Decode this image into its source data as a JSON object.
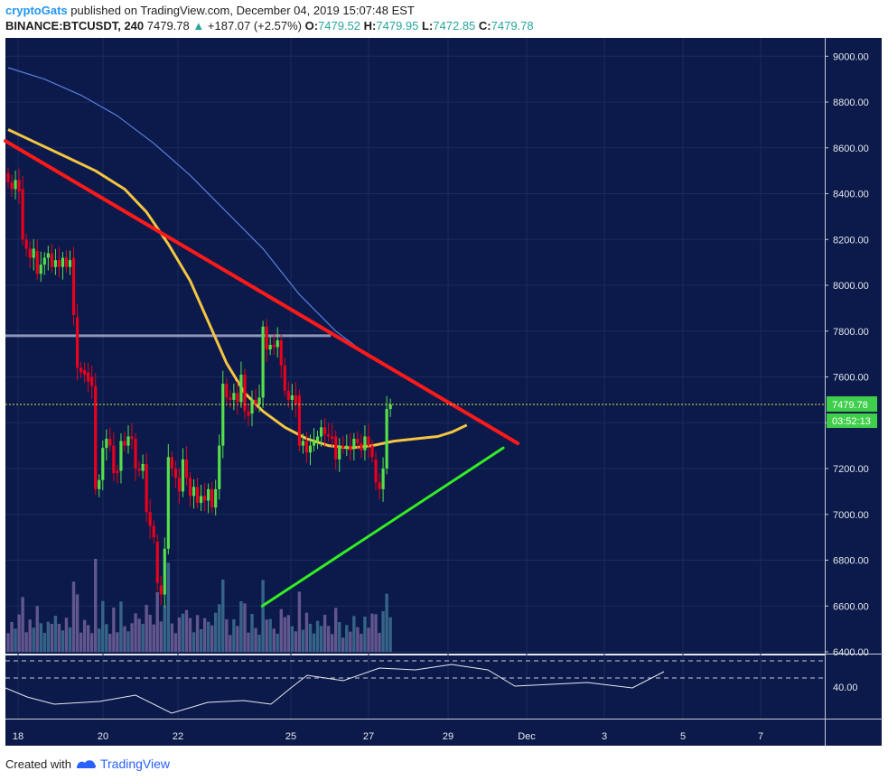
{
  "header": {
    "author": "cryptoGats",
    "published": "published on TradingView.com, December 04, 2019 15:07:48 EST",
    "symbol": "BINANCE:BTCUSDT, 240",
    "last": "7479.78",
    "change": "+187.07 (+2.57%)",
    "o_label": "O:",
    "o_val": "7479.52",
    "h_label": "H:",
    "h_val": "7479.95",
    "l_label": "L:",
    "l_val": "7472.85",
    "c_label": "C:",
    "c_val": "7479.78"
  },
  "footer": {
    "created": "Created with",
    "brand": "TradingView"
  },
  "colors": {
    "background": "#0b1a4a",
    "up": "#55e04a",
    "down": "#e8001c",
    "resistance": "#ff1a1a",
    "support": "#33ee22",
    "ma_fast": "#f5c542",
    "ma_slow": "#5b7fe0"
  },
  "chart_data": {
    "type": "candlestick",
    "price_axis": {
      "ticks": [
        "9000.00",
        "8800.00",
        "8600.00",
        "8400.00",
        "8200.00",
        "8000.00",
        "7800.00",
        "7600.00",
        "7400.00",
        "7200.00",
        "7000.00",
        "6800.00",
        "6600.00",
        "6400.00"
      ],
      "ylim": [
        6400,
        9080
      ]
    },
    "oscillator_axis": {
      "ticks": [
        "40.00"
      ]
    },
    "time_axis": {
      "ticks": [
        "18",
        "20",
        "22",
        "25",
        "27",
        "29",
        "Dec",
        "3",
        "5",
        "7"
      ]
    },
    "last_price_label": "7479.78",
    "countdown_label": "03:52:13",
    "candles": [
      {
        "o": 8490,
        "c": 8450
      },
      {
        "o": 8450,
        "c": 8420
      },
      {
        "o": 8420,
        "c": 8460
      },
      {
        "o": 8460,
        "c": 8410
      },
      {
        "o": 8420,
        "c": 8200
      },
      {
        "o": 8200,
        "c": 8160
      },
      {
        "o": 8160,
        "c": 8120
      },
      {
        "o": 8120,
        "c": 8160
      },
      {
        "o": 8150,
        "c": 8050
      },
      {
        "o": 8050,
        "c": 8090
      },
      {
        "o": 8090,
        "c": 8120
      },
      {
        "o": 8120,
        "c": 8140
      },
      {
        "o": 8140,
        "c": 8080
      },
      {
        "o": 8080,
        "c": 8110
      },
      {
        "o": 8110,
        "c": 8080
      },
      {
        "o": 8080,
        "c": 8120
      },
      {
        "o": 8120,
        "c": 8080
      },
      {
        "o": 8080,
        "c": 8110
      },
      {
        "o": 8120,
        "c": 7870
      },
      {
        "o": 7860,
        "c": 7640
      },
      {
        "o": 7640,
        "c": 7620
      },
      {
        "o": 7630,
        "c": 7610
      },
      {
        "o": 7620,
        "c": 7580
      },
      {
        "o": 7600,
        "c": 7560
      },
      {
        "o": 7560,
        "c": 7110
      },
      {
        "o": 7110,
        "c": 7150
      },
      {
        "o": 7150,
        "c": 7290
      },
      {
        "o": 7290,
        "c": 7330
      },
      {
        "o": 7330,
        "c": 7300
      },
      {
        "o": 7300,
        "c": 7180
      },
      {
        "o": 7190,
        "c": 7180
      },
      {
        "o": 7190,
        "c": 7320
      },
      {
        "o": 7320,
        "c": 7300
      },
      {
        "o": 7300,
        "c": 7340
      },
      {
        "o": 7340,
        "c": 7330
      },
      {
        "o": 7330,
        "c": 7200
      },
      {
        "o": 7200,
        "c": 7190
      },
      {
        "o": 7190,
        "c": 7220
      },
      {
        "o": 7220,
        "c": 7010
      },
      {
        "o": 7010,
        "c": 6950
      },
      {
        "o": 6950,
        "c": 6900
      },
      {
        "o": 6880,
        "c": 6700
      },
      {
        "o": 6690,
        "c": 6650
      },
      {
        "o": 6650,
        "c": 6850
      },
      {
        "o": 6850,
        "c": 7250
      },
      {
        "o": 7250,
        "c": 7200
      },
      {
        "o": 7200,
        "c": 7160
      },
      {
        "o": 7160,
        "c": 7100
      },
      {
        "o": 7100,
        "c": 7240
      },
      {
        "o": 7240,
        "c": 7160
      },
      {
        "o": 7160,
        "c": 7080
      },
      {
        "o": 7080,
        "c": 7120
      },
      {
        "o": 7120,
        "c": 7050
      },
      {
        "o": 7050,
        "c": 7080
      },
      {
        "o": 7080,
        "c": 7060
      },
      {
        "o": 7060,
        "c": 7110
      },
      {
        "o": 7110,
        "c": 7030
      },
      {
        "o": 7030,
        "c": 7110
      },
      {
        "o": 7110,
        "c": 7300
      },
      {
        "o": 7300,
        "c": 7570
      },
      {
        "o": 7570,
        "c": 7510
      },
      {
        "o": 7510,
        "c": 7500
      },
      {
        "o": 7500,
        "c": 7530
      },
      {
        "o": 7530,
        "c": 7490
      },
      {
        "o": 7490,
        "c": 7610
      },
      {
        "o": 7610,
        "c": 7450
      },
      {
        "o": 7450,
        "c": 7430
      },
      {
        "o": 7440,
        "c": 7500
      },
      {
        "o": 7500,
        "c": 7480
      },
      {
        "o": 7480,
        "c": 7510
      },
      {
        "o": 7510,
        "c": 7820
      },
      {
        "o": 7820,
        "c": 7720
      },
      {
        "o": 7720,
        "c": 7740
      },
      {
        "o": 7740,
        "c": 7730
      },
      {
        "o": 7730,
        "c": 7760
      },
      {
        "o": 7760,
        "c": 7650
      },
      {
        "o": 7650,
        "c": 7540
      },
      {
        "o": 7540,
        "c": 7500
      },
      {
        "o": 7500,
        "c": 7520
      },
      {
        "o": 7520,
        "c": 7480
      },
      {
        "o": 7520,
        "c": 7300
      },
      {
        "o": 7300,
        "c": 7320
      },
      {
        "o": 7320,
        "c": 7270
      },
      {
        "o": 7270,
        "c": 7300
      },
      {
        "o": 7300,
        "c": 7320
      },
      {
        "o": 7320,
        "c": 7340
      },
      {
        "o": 7340,
        "c": 7380
      },
      {
        "o": 7380,
        "c": 7350
      },
      {
        "o": 7350,
        "c": 7340
      },
      {
        "o": 7340,
        "c": 7330
      },
      {
        "o": 7340,
        "c": 7240
      },
      {
        "o": 7240,
        "c": 7300
      },
      {
        "o": 7300,
        "c": 7290
      },
      {
        "o": 7290,
        "c": 7300
      },
      {
        "o": 7300,
        "c": 7280
      },
      {
        "o": 7290,
        "c": 7330
      },
      {
        "o": 7330,
        "c": 7310
      },
      {
        "o": 7310,
        "c": 7280
      },
      {
        "o": 7280,
        "c": 7340
      },
      {
        "o": 7340,
        "c": 7300
      },
      {
        "o": 7300,
        "c": 7250
      },
      {
        "o": 7240,
        "c": 7140
      },
      {
        "o": 7140,
        "c": 7110
      },
      {
        "o": 7110,
        "c": 7200
      },
      {
        "o": 7200,
        "c": 7460
      },
      {
        "o": 7460,
        "c": 7480
      }
    ],
    "ma_fast": [
      [
        0,
        8680
      ],
      [
        8,
        8620
      ],
      [
        16,
        8560
      ],
      [
        24,
        8500
      ],
      [
        32,
        8420
      ],
      [
        38,
        8320
      ],
      [
        44,
        8180
      ],
      [
        50,
        8020
      ],
      [
        55,
        7840
      ],
      [
        60,
        7660
      ],
      [
        65,
        7530
      ],
      [
        70,
        7450
      ],
      [
        76,
        7380
      ],
      [
        82,
        7330
      ],
      [
        88,
        7300
      ],
      [
        94,
        7290
      ],
      [
        100,
        7300
      ],
      [
        106,
        7320
      ],
      [
        112,
        7330
      ],
      [
        118,
        7340
      ],
      [
        122,
        7360
      ],
      [
        126,
        7390
      ]
    ],
    "ma_slow": [
      [
        0,
        8950
      ],
      [
        10,
        8900
      ],
      [
        20,
        8830
      ],
      [
        30,
        8740
      ],
      [
        40,
        8620
      ],
      [
        50,
        8480
      ],
      [
        60,
        8320
      ],
      [
        70,
        8160
      ],
      [
        80,
        7960
      ],
      [
        90,
        7800
      ],
      [
        100,
        7680
      ],
      [
        110,
        7590
      ],
      [
        115,
        7540
      ],
      [
        118,
        7510
      ]
    ],
    "horizontal_level": 7780,
    "resistance_line": {
      "from": [
        0,
        8630
      ],
      "to": [
        140,
        7310
      ]
    },
    "support_line": {
      "from": [
        45,
        6600
      ],
      "to": [
        136,
        7290
      ]
    }
  }
}
